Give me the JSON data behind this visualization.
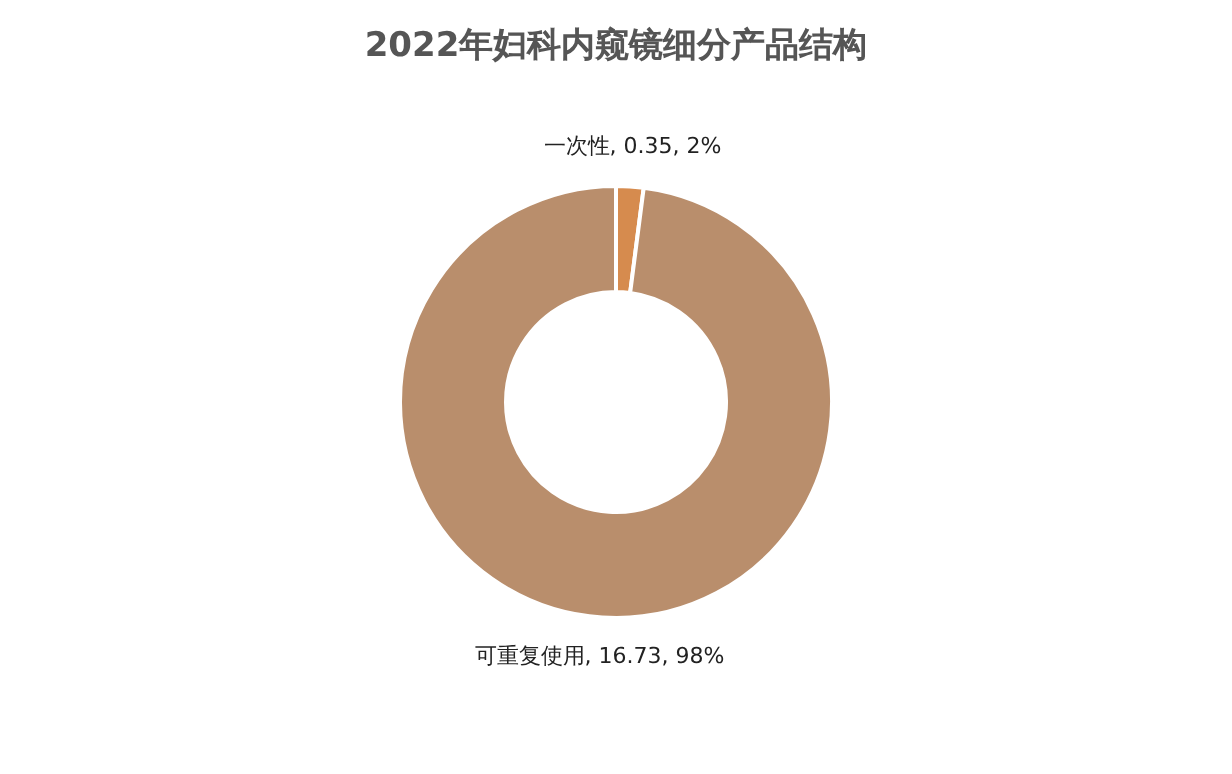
{
  "chart_data": {
    "type": "donut",
    "title": "2022年妇科内窥镜细分产品结构",
    "categories": [
      "一次性",
      "可重复使用"
    ],
    "values": [
      0.35,
      16.73
    ],
    "colors": [
      "#d68b4e",
      "#b98e6c"
    ],
    "value_labels": [
      "0.35, 2%",
      "16.73, 98%"
    ],
    "legend": false
  }
}
